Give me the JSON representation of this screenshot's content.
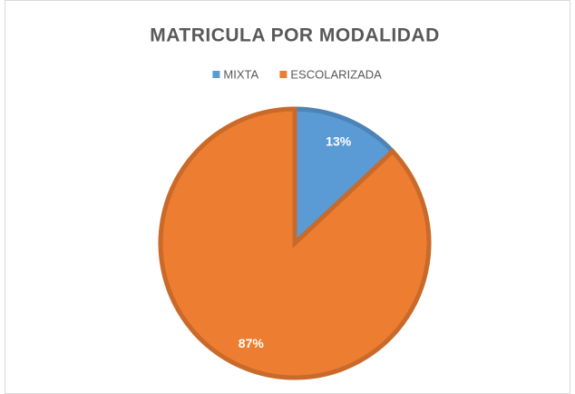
{
  "chart_data": {
    "type": "pie",
    "title": "MATRICULA POR MODALIDAD",
    "categories": [
      "MIXTA",
      "ESCOLARIZADA"
    ],
    "values": [
      13,
      87
    ],
    "value_labels": [
      "13%",
      "87%"
    ],
    "colors": [
      "#5b9bd5",
      "#ed7d31"
    ],
    "legend": "top"
  }
}
